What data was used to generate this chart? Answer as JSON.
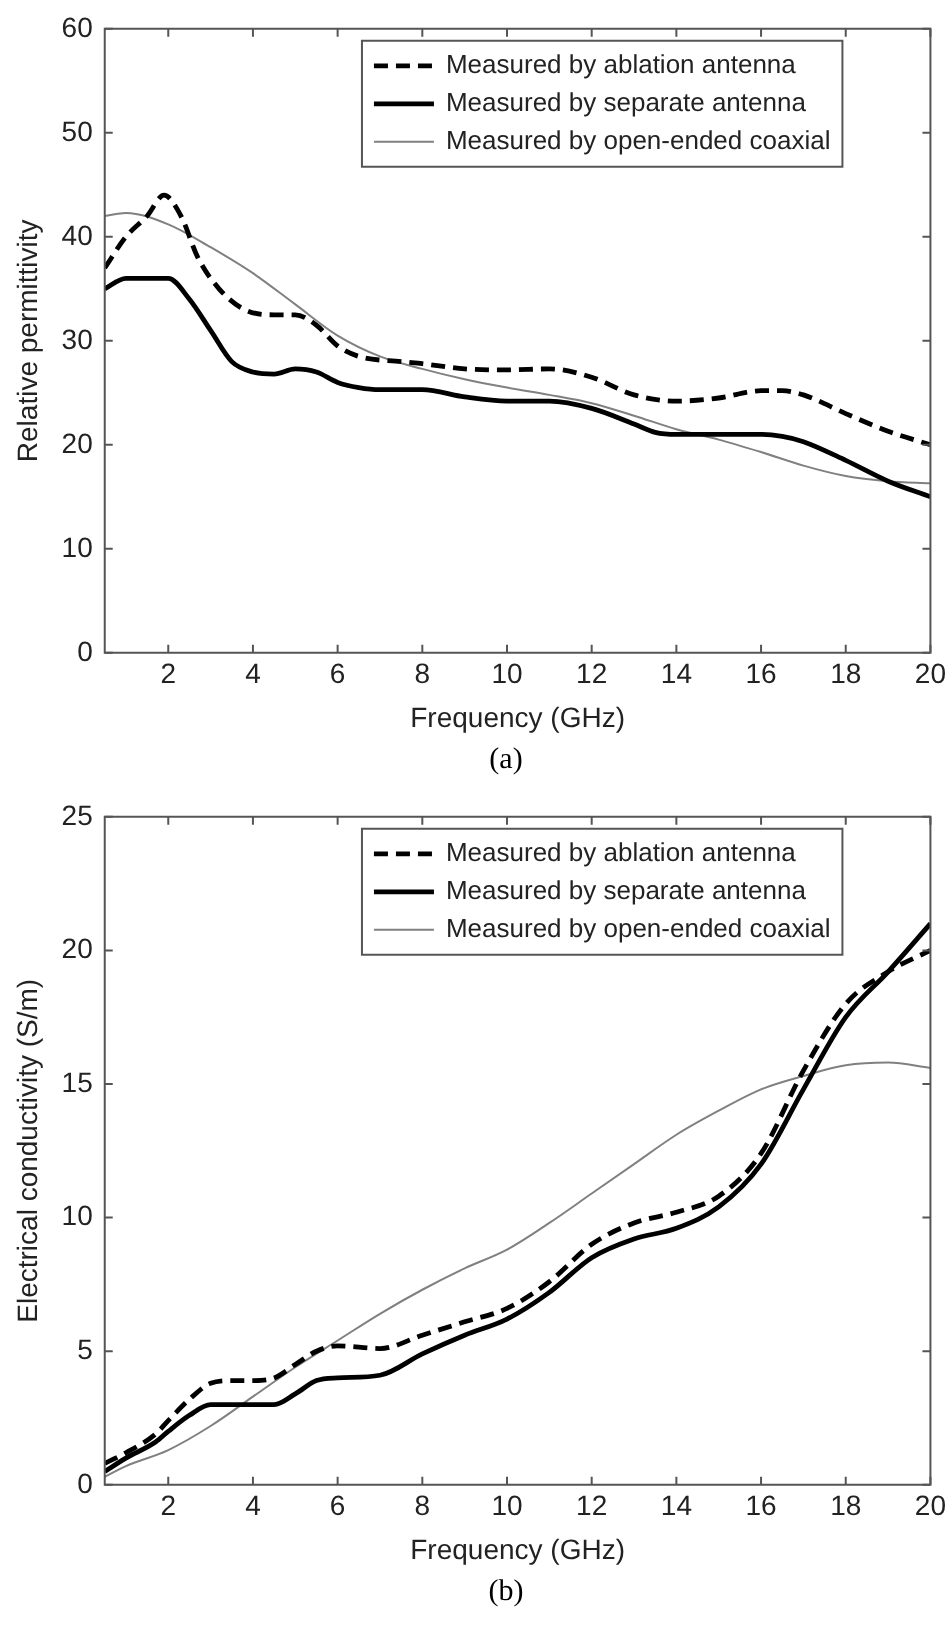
{
  "chart_data": [
    {
      "type": "line",
      "xlabel": "Frequency (GHz)",
      "ylabel": "Relative permittivity",
      "xlim": [
        0.5,
        20
      ],
      "xticks": [
        2,
        4,
        6,
        8,
        10,
        12,
        14,
        16,
        18,
        20
      ],
      "ylim": [
        0,
        60
      ],
      "yticks": [
        0,
        10,
        20,
        30,
        40,
        50,
        60
      ],
      "grid": false,
      "legend": "top right",
      "marker": "none",
      "annotations": [
        "(a)"
      ],
      "series": [
        {
          "name": "Measured by ablation antenna",
          "color": "#000000",
          "line_style": "dashed",
          "x": [
            0.5,
            1,
            1.5,
            1.9,
            2.3,
            2.7,
            3.2,
            3.8,
            4.5,
            5,
            5.5,
            6,
            6.5,
            7.5,
            8,
            9,
            10,
            11,
            12,
            13,
            14,
            15,
            16,
            16.5,
            17,
            18,
            19,
            20
          ],
          "values": [
            37,
            40,
            42,
            44,
            42,
            38,
            35,
            33,
            32.5,
            32.5,
            31.5,
            29.5,
            28.5,
            28,
            27.8,
            27.3,
            27.2,
            27.3,
            26.5,
            24.8,
            24.2,
            24.5,
            25.2,
            25.2,
            24.8,
            23,
            21.3,
            20
          ]
        },
        {
          "name": "Measured by separate antenna",
          "color": "#000000",
          "line_style": "solid",
          "x": [
            0.5,
            1,
            2,
            2.5,
            3,
            3.5,
            4,
            4.5,
            5,
            5.5,
            6,
            6.5,
            7,
            8,
            9,
            10,
            11,
            12,
            13,
            13.5,
            14,
            15,
            16,
            16.5,
            17,
            18,
            19,
            20
          ],
          "values": [
            35,
            36,
            36,
            34,
            31,
            28,
            27,
            26.8,
            27.3,
            27,
            26,
            25.5,
            25.3,
            25.3,
            24.6,
            24.2,
            24.2,
            23.5,
            22,
            21.2,
            21,
            21,
            21,
            20.8,
            20.3,
            18.5,
            16.5,
            15
          ]
        },
        {
          "name": "Measured by open-ended coaxial",
          "color": "#808080",
          "line_style": "solid",
          "x": [
            0.5,
            1,
            2,
            3,
            4,
            5,
            6,
            7,
            8,
            9,
            10,
            11,
            12,
            13,
            14,
            15,
            16,
            17,
            18,
            19,
            20
          ],
          "values": [
            42,
            42.3,
            41.2,
            39,
            36.5,
            33.5,
            30.5,
            28.5,
            27.3,
            26.3,
            25.5,
            24.8,
            24,
            22.8,
            21.5,
            20.5,
            19.3,
            18,
            17,
            16.5,
            16.3
          ]
        }
      ]
    },
    {
      "type": "line",
      "xlabel": "Frequency (GHz)",
      "ylabel": "Electrical conductivity (S/m)",
      "xlim": [
        0.5,
        20
      ],
      "xticks": [
        2,
        4,
        6,
        8,
        10,
        12,
        14,
        16,
        18,
        20
      ],
      "ylim": [
        0,
        25
      ],
      "yticks": [
        0,
        5,
        10,
        15,
        20,
        25
      ],
      "grid": false,
      "legend": "top right",
      "marker": "none",
      "annotations": [
        "(b)"
      ],
      "series": [
        {
          "name": "Measured by ablation antenna",
          "color": "#000000",
          "line_style": "dashed",
          "x": [
            0.5,
            1,
            1.7,
            2,
            2.5,
            3,
            3.5,
            4,
            4.5,
            5,
            5.5,
            6,
            7,
            8,
            9,
            10,
            11,
            12,
            13,
            14,
            15,
            16,
            17,
            18,
            19,
            20
          ],
          "values": [
            0.8,
            1.2,
            1.9,
            2.4,
            3.2,
            3.8,
            3.9,
            3.9,
            4,
            4.5,
            5,
            5.2,
            5.1,
            5.6,
            6.1,
            6.6,
            7.6,
            9,
            9.8,
            10.2,
            10.8,
            12.4,
            15.5,
            18,
            19.2,
            20
          ]
        },
        {
          "name": "Measured by separate antenna",
          "color": "#000000",
          "line_style": "solid",
          "x": [
            0.5,
            1,
            1.7,
            2,
            2.5,
            3,
            3.5,
            4,
            4.5,
            5,
            5.5,
            6,
            7,
            8,
            9,
            10,
            11,
            12,
            13,
            14,
            15,
            16,
            17,
            18,
            19,
            20
          ],
          "values": [
            0.5,
            1,
            1.6,
            2,
            2.6,
            3,
            3,
            3,
            3,
            3.4,
            3.9,
            4,
            4.1,
            4.9,
            5.6,
            6.2,
            7.2,
            8.5,
            9.2,
            9.6,
            10.4,
            12,
            14.8,
            17.5,
            19.2,
            21
          ]
        },
        {
          "name": "Measured by open-ended coaxial",
          "color": "#808080",
          "line_style": "solid",
          "x": [
            0.5,
            1,
            2,
            3,
            4,
            5,
            6,
            7,
            8,
            9,
            10,
            11,
            12,
            13,
            14,
            15,
            16,
            17,
            18,
            19,
            20
          ],
          "values": [
            0.3,
            0.7,
            1.3,
            2.2,
            3.3,
            4.4,
            5.4,
            6.4,
            7.3,
            8.1,
            8.8,
            9.8,
            10.9,
            12,
            13.1,
            14,
            14.8,
            15.3,
            15.7,
            15.8,
            15.6
          ]
        }
      ]
    }
  ]
}
